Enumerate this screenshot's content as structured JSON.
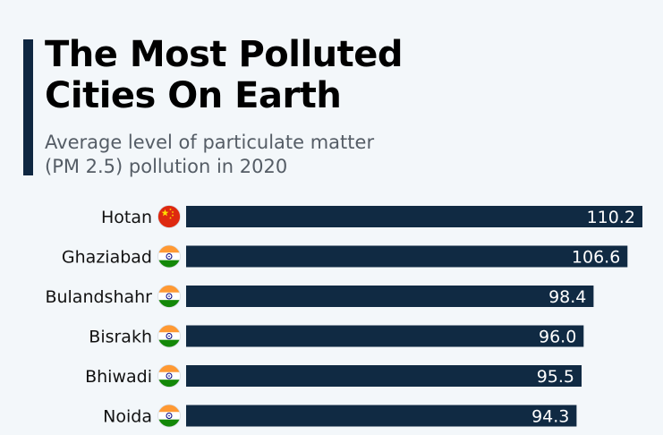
{
  "title": "The Most Polluted\nCities On Earth",
  "subtitle": "Average level of particulate matter\n(PM 2.5) pollution in 2020",
  "colors": {
    "bar": "#102a43",
    "bar_label": "#ffffff",
    "accent": "#0f2741",
    "background": "#f3f7fa"
  },
  "chart_data": {
    "type": "bar",
    "orientation": "horizontal",
    "categories": [
      "Hotan",
      "Ghaziabad",
      "Bulandshahr",
      "Bisrakh",
      "Bhiwadi",
      "Noida"
    ],
    "flags": [
      "china-flag-icon",
      "india-flag-icon",
      "india-flag-icon",
      "india-flag-icon",
      "india-flag-icon",
      "india-flag-icon"
    ],
    "values": [
      110.2,
      106.6,
      98.4,
      96.0,
      95.5,
      94.3
    ],
    "value_labels": [
      "110.2",
      "106.6",
      "98.4",
      "96.0",
      "95.5",
      "94.3"
    ],
    "title": "The Most Polluted Cities On Earth",
    "xlabel": "",
    "ylabel": "",
    "xlim": [
      0,
      110.2
    ],
    "grid": false,
    "legend": "none"
  }
}
